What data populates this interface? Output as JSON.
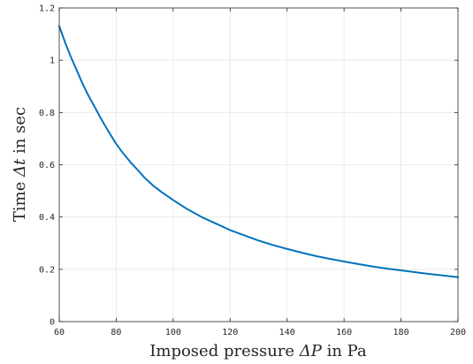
{
  "chart_data": {
    "type": "line",
    "xlabel_parts": {
      "prefix": "Imposed pressure ",
      "math": "ΔP",
      "suffix": " in Pa"
    },
    "ylabel_parts": {
      "prefix": "Time ",
      "math": "Δt",
      "suffix": " in sec"
    },
    "xlim": [
      60,
      200
    ],
    "ylim": [
      0,
      1.2
    ],
    "xticks": [
      60,
      80,
      100,
      120,
      140,
      160,
      180,
      200
    ],
    "yticks": [
      0,
      0.2,
      0.4,
      0.6,
      0.8,
      1,
      1.2
    ],
    "xtick_labels": [
      "60",
      "80",
      "100",
      "120",
      "140",
      "160",
      "180",
      "200"
    ],
    "ytick_labels": [
      "0",
      "0.2",
      "0.4",
      "0.6",
      "0.8",
      "1",
      "1.2"
    ],
    "grid": true,
    "series": [
      {
        "color": "#0072BD",
        "x": [
          60,
          62,
          64,
          66,
          68,
          70,
          72,
          75,
          78,
          80,
          82,
          85,
          88,
          90,
          93,
          96,
          100,
          105,
          110,
          115,
          120,
          125,
          130,
          135,
          140,
          145,
          150,
          155,
          160,
          165,
          170,
          175,
          180,
          185,
          190,
          195,
          200
        ],
        "y": [
          1.13,
          1.07,
          1.015,
          0.965,
          0.915,
          0.87,
          0.83,
          0.77,
          0.715,
          0.68,
          0.65,
          0.61,
          0.575,
          0.55,
          0.52,
          0.495,
          0.465,
          0.43,
          0.4,
          0.375,
          0.35,
          0.33,
          0.31,
          0.293,
          0.278,
          0.264,
          0.251,
          0.24,
          0.23,
          0.22,
          0.211,
          0.203,
          0.196,
          0.189,
          0.182,
          0.176,
          0.17
        ]
      }
    ]
  }
}
